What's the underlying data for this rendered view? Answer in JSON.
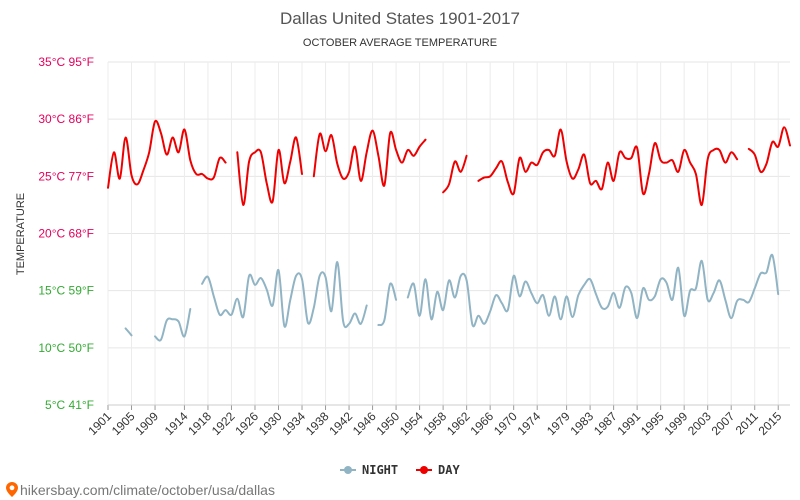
{
  "chart_data": {
    "type": "line",
    "title": "Dallas United States 1901-2017",
    "subtitle": "OCTOBER AVERAGE TEMPERATURE",
    "ylabel": "TEMPERATURE",
    "ylim": [
      5,
      35
    ],
    "y_ticks": [
      {
        "value": 35,
        "label": "35°C 95°F",
        "color": "#e6005c"
      },
      {
        "value": 30,
        "label": "30°C 86°F",
        "color": "#e6005c"
      },
      {
        "value": 25,
        "label": "25°C 77°F",
        "color": "#e6005c"
      },
      {
        "value": 20,
        "label": "20°C 68°F",
        "color": "#e6005c"
      },
      {
        "value": 15,
        "label": "15°C 59°F",
        "color": "#33aa33"
      },
      {
        "value": 10,
        "label": "10°C 50°F",
        "color": "#33aa33"
      },
      {
        "value": 5,
        "label": "5°C 41°F",
        "color": "#33aa33"
      }
    ],
    "x_range": [
      1901,
      2017
    ],
    "x_ticks": [
      1901,
      1905,
      1909,
      1914,
      1918,
      1922,
      1926,
      1930,
      1934,
      1938,
      1942,
      1946,
      1950,
      1954,
      1958,
      1962,
      1966,
      1970,
      1974,
      1979,
      1983,
      1987,
      1991,
      1995,
      1999,
      2003,
      2007,
      2011,
      2015
    ],
    "grid": true,
    "legend_position": "bottom",
    "series": [
      {
        "name": "NIGHT",
        "color": "#90b4c4",
        "points": [
          [
            1904,
            11.7
          ],
          [
            1905,
            11.1
          ],
          [
            null,
            null
          ],
          [
            1909,
            11.0
          ],
          [
            1910,
            10.7
          ],
          [
            1911,
            12.4
          ],
          [
            1912,
            12.5
          ],
          [
            1913,
            12.3
          ],
          [
            1914,
            11.0
          ],
          [
            1915,
            13.4
          ],
          [
            null,
            null
          ],
          [
            1917,
            15.6
          ],
          [
            1918,
            16.2
          ],
          [
            1919,
            14.5
          ],
          [
            1920,
            12.9
          ],
          [
            1921,
            13.3
          ],
          [
            1922,
            12.9
          ],
          [
            1923,
            14.3
          ],
          [
            1924,
            12.7
          ],
          [
            1925,
            16.3
          ],
          [
            1926,
            15.5
          ],
          [
            1927,
            16.1
          ],
          [
            1928,
            15.1
          ],
          [
            1929,
            13.7
          ],
          [
            1930,
            16.8
          ],
          [
            1931,
            11.9
          ],
          [
            1932,
            14.2
          ],
          [
            1933,
            16.3
          ],
          [
            1934,
            16.0
          ],
          [
            1935,
            12.2
          ],
          [
            1936,
            13.5
          ],
          [
            1937,
            16.3
          ],
          [
            1938,
            16.2
          ],
          [
            1939,
            13.2
          ],
          [
            1940,
            17.5
          ],
          [
            1941,
            12.3
          ],
          [
            1942,
            12.1
          ],
          [
            1943,
            13.0
          ],
          [
            1944,
            12.1
          ],
          [
            1945,
            13.7
          ],
          [
            null,
            null
          ],
          [
            1947,
            12.0
          ],
          [
            1948,
            12.4
          ],
          [
            1949,
            15.6
          ],
          [
            1950,
            14.2
          ],
          [
            null,
            null
          ],
          [
            1952,
            14.4
          ],
          [
            1953,
            15.6
          ],
          [
            1954,
            12.8
          ],
          [
            1955,
            16.0
          ],
          [
            1956,
            12.5
          ],
          [
            1957,
            14.9
          ],
          [
            1958,
            13.3
          ],
          [
            1959,
            15.9
          ],
          [
            1960,
            14.4
          ],
          [
            1961,
            16.3
          ],
          [
            1962,
            15.9
          ],
          [
            1963,
            12.0
          ],
          [
            1964,
            12.8
          ],
          [
            1965,
            12.1
          ],
          [
            1966,
            13.2
          ],
          [
            1967,
            14.6
          ],
          [
            1968,
            13.9
          ],
          [
            1969,
            13.3
          ],
          [
            1970,
            16.3
          ],
          [
            1971,
            14.5
          ],
          [
            1972,
            15.8
          ],
          [
            1973,
            14.8
          ],
          [
            1974,
            13.9
          ],
          [
            1975,
            14.6
          ],
          [
            1976,
            12.8
          ],
          [
            1977,
            14.5
          ],
          [
            1978,
            12.5
          ],
          [
            1979,
            14.5
          ],
          [
            1980,
            12.7
          ],
          [
            1981,
            14.6
          ],
          [
            1982,
            15.5
          ],
          [
            1983,
            16.0
          ],
          [
            1984,
            14.7
          ],
          [
            1985,
            13.5
          ],
          [
            1986,
            13.6
          ],
          [
            1987,
            14.8
          ],
          [
            1988,
            13.5
          ],
          [
            1989,
            15.3
          ],
          [
            1990,
            14.8
          ],
          [
            1991,
            12.6
          ],
          [
            1992,
            15.2
          ],
          [
            1993,
            14.2
          ],
          [
            1994,
            14.5
          ],
          [
            1995,
            16.0
          ],
          [
            1996,
            15.7
          ],
          [
            1997,
            14.2
          ],
          [
            1998,
            17.0
          ],
          [
            1999,
            12.8
          ],
          [
            2000,
            15.0
          ],
          [
            2001,
            15.2
          ],
          [
            2002,
            17.6
          ],
          [
            2003,
            14.2
          ],
          [
            2004,
            14.8
          ],
          [
            2005,
            15.9
          ],
          [
            2006,
            14.2
          ],
          [
            2007,
            12.6
          ],
          [
            2008,
            14.1
          ],
          [
            2009,
            14.2
          ],
          [
            2010,
            14.0
          ],
          [
            2011,
            15.2
          ],
          [
            2012,
            16.5
          ],
          [
            2013,
            16.6
          ],
          [
            2014,
            18.1
          ],
          [
            2015,
            14.7
          ]
        ]
      },
      {
        "name": "DAY",
        "color": "#ee0000",
        "points": [
          [
            1901,
            24.0
          ],
          [
            1902,
            27.1
          ],
          [
            1903,
            24.8
          ],
          [
            1904,
            28.4
          ],
          [
            1905,
            25.1
          ],
          [
            1906,
            24.3
          ],
          [
            1907,
            25.5
          ],
          [
            1908,
            27.1
          ],
          [
            1909,
            29.8
          ],
          [
            1910,
            28.8
          ],
          [
            1911,
            26.9
          ],
          [
            1912,
            28.4
          ],
          [
            1913,
            27.1
          ],
          [
            1914,
            29.1
          ],
          [
            1915,
            26.4
          ],
          [
            1916,
            25.2
          ],
          [
            1917,
            25.2
          ],
          [
            1918,
            24.8
          ],
          [
            1919,
            24.9
          ],
          [
            1920,
            26.6
          ],
          [
            1921,
            26.2
          ],
          [
            null,
            null
          ],
          [
            1923,
            27.1
          ],
          [
            1924,
            22.5
          ],
          [
            1925,
            26.3
          ],
          [
            1926,
            27.1
          ],
          [
            1927,
            27.1
          ],
          [
            1928,
            24.4
          ],
          [
            1929,
            22.8
          ],
          [
            1930,
            27.3
          ],
          [
            1931,
            24.4
          ],
          [
            1932,
            26.3
          ],
          [
            1933,
            28.4
          ],
          [
            1934,
            25.2
          ],
          [
            null,
            null
          ],
          [
            1936,
            25.0
          ],
          [
            1937,
            28.7
          ],
          [
            1938,
            27.2
          ],
          [
            1939,
            28.6
          ],
          [
            1940,
            26.1
          ],
          [
            1941,
            24.8
          ],
          [
            1942,
            25.4
          ],
          [
            1943,
            27.6
          ],
          [
            1944,
            24.6
          ],
          [
            1945,
            27.1
          ],
          [
            1946,
            29.0
          ],
          [
            1947,
            26.8
          ],
          [
            1948,
            24.2
          ],
          [
            1949,
            28.8
          ],
          [
            1950,
            27.3
          ],
          [
            1951,
            26.2
          ],
          [
            1952,
            27.3
          ],
          [
            1953,
            26.8
          ],
          [
            1954,
            27.6
          ],
          [
            1955,
            28.2
          ],
          [
            null,
            null
          ],
          [
            1958,
            23.6
          ],
          [
            1959,
            24.3
          ],
          [
            1960,
            26.3
          ],
          [
            1961,
            25.4
          ],
          [
            1962,
            26.8
          ],
          [
            null,
            null
          ],
          [
            1964,
            24.6
          ],
          [
            1965,
            24.9
          ],
          [
            1966,
            25.0
          ],
          [
            1967,
            25.7
          ],
          [
            1968,
            26.3
          ],
          [
            1969,
            24.5
          ],
          [
            1970,
            23.5
          ],
          [
            1971,
            26.6
          ],
          [
            1972,
            25.4
          ],
          [
            1973,
            26.2
          ],
          [
            1974,
            26.0
          ],
          [
            1975,
            27.1
          ],
          [
            1976,
            27.3
          ],
          [
            1977,
            26.8
          ],
          [
            1978,
            29.1
          ],
          [
            1979,
            26.3
          ],
          [
            1980,
            24.8
          ],
          [
            1981,
            25.6
          ],
          [
            1982,
            26.9
          ],
          [
            1983,
            24.4
          ],
          [
            1984,
            24.6
          ],
          [
            1985,
            23.9
          ],
          [
            1986,
            26.2
          ],
          [
            1987,
            24.6
          ],
          [
            1988,
            27.1
          ],
          [
            1989,
            26.6
          ],
          [
            1990,
            26.6
          ],
          [
            1991,
            27.5
          ],
          [
            1992,
            23.5
          ],
          [
            1993,
            25.2
          ],
          [
            1994,
            27.9
          ],
          [
            1995,
            26.4
          ],
          [
            1996,
            26.2
          ],
          [
            1997,
            26.4
          ],
          [
            1998,
            25.4
          ],
          [
            1999,
            27.3
          ],
          [
            2000,
            26.2
          ],
          [
            2001,
            25.2
          ],
          [
            2002,
            22.5
          ],
          [
            2003,
            26.5
          ],
          [
            2004,
            27.3
          ],
          [
            2005,
            27.3
          ],
          [
            2006,
            26.2
          ],
          [
            2007,
            27.1
          ],
          [
            2008,
            26.5
          ],
          [
            null,
            null
          ],
          [
            2010,
            27.4
          ],
          [
            2011,
            26.9
          ],
          [
            2012,
            25.4
          ],
          [
            2013,
            26.1
          ],
          [
            2014,
            28.0
          ],
          [
            2015,
            27.6
          ],
          [
            2016,
            29.3
          ],
          [
            2017,
            27.7
          ]
        ]
      }
    ]
  },
  "legend": {
    "night_label": "NIGHT",
    "day_label": "DAY"
  },
  "source": {
    "text": "hikersbay.com/climate/october/usa/dallas",
    "icon": "map-pin-icon",
    "icon_color": "#ff6600"
  }
}
